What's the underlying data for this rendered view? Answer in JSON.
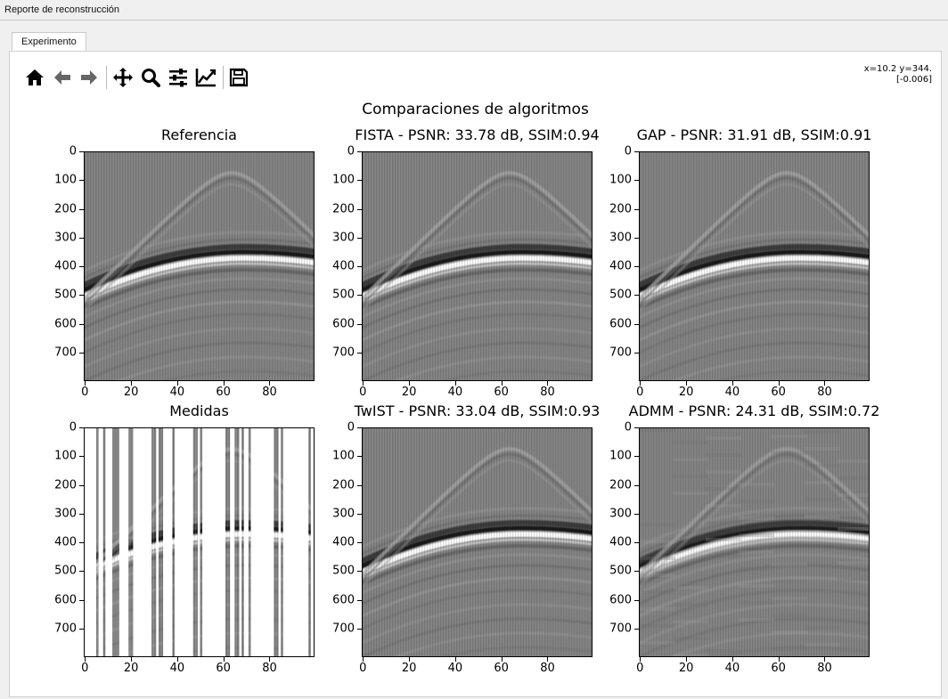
{
  "window": {
    "title": "Reporte de reconstrucción"
  },
  "tabs": [
    {
      "label": "Experimento",
      "active": true
    }
  ],
  "toolbar": {
    "buttons": [
      {
        "name": "home-button",
        "icon": "home-icon"
      },
      {
        "name": "back-button",
        "icon": "arrow-left-icon"
      },
      {
        "name": "forward-button",
        "icon": "arrow-right-icon"
      },
      {
        "name": "pan-button",
        "icon": "move-icon"
      },
      {
        "name": "zoom-button",
        "icon": "zoom-icon"
      },
      {
        "name": "subplots-button",
        "icon": "sliders-icon"
      },
      {
        "name": "customize-button",
        "icon": "chart-line-icon"
      },
      {
        "name": "save-button",
        "icon": "save-icon"
      }
    ]
  },
  "coords": {
    "line1": "x=10.2 y=344.",
    "line2": "[-0.006]"
  },
  "figure": {
    "suptitle": "Comparaciones de algoritmos"
  },
  "chart_data": [
    {
      "type": "heatmap",
      "title": "Referencia",
      "xticks": [
        "0",
        "20",
        "40",
        "60",
        "80"
      ],
      "yticks": [
        "0",
        "100",
        "200",
        "300",
        "400",
        "500",
        "600",
        "700"
      ],
      "xlim": [
        0,
        100
      ],
      "ylim": [
        800,
        0
      ],
      "colormap": "gray"
    },
    {
      "type": "heatmap",
      "title": "FISTA - PSNR: 33.78 dB, SSIM:0.94",
      "xticks": [
        "0",
        "20",
        "40",
        "60",
        "80"
      ],
      "yticks": [
        "0",
        "100",
        "200",
        "300",
        "400",
        "500",
        "600",
        "700"
      ],
      "xlim": [
        0,
        100
      ],
      "ylim": [
        800,
        0
      ],
      "colormap": "gray",
      "metrics": {
        "psnr_db": 33.78,
        "ssim": 0.94
      }
    },
    {
      "type": "heatmap",
      "title": "GAP - PSNR: 31.91 dB, SSIM:0.91",
      "xticks": [
        "0",
        "20",
        "40",
        "60",
        "80"
      ],
      "yticks": [
        "0",
        "100",
        "200",
        "300",
        "400",
        "500",
        "600",
        "700"
      ],
      "xlim": [
        0,
        100
      ],
      "ylim": [
        800,
        0
      ],
      "colormap": "gray",
      "metrics": {
        "psnr_db": 31.91,
        "ssim": 0.91
      }
    },
    {
      "type": "heatmap",
      "title": "Medidas",
      "xticks": [
        "0",
        "20",
        "40",
        "60",
        "80"
      ],
      "yticks": [
        "0",
        "100",
        "200",
        "300",
        "400",
        "500",
        "600",
        "700"
      ],
      "xlim": [
        0,
        100
      ],
      "ylim": [
        800,
        0
      ],
      "colormap": "gray",
      "sampled_columns": [
        5,
        8,
        12,
        13,
        14,
        19,
        20,
        29,
        30,
        32,
        33,
        38,
        47,
        48,
        50,
        61,
        62,
        65,
        66,
        68,
        71,
        82,
        83,
        85,
        97
      ]
    },
    {
      "type": "heatmap",
      "title": "TwIST - PSNR: 33.04 dB, SSIM:0.93",
      "xticks": [
        "0",
        "20",
        "40",
        "60",
        "80"
      ],
      "yticks": [
        "0",
        "100",
        "200",
        "300",
        "400",
        "500",
        "600",
        "700"
      ],
      "xlim": [
        0,
        100
      ],
      "ylim": [
        800,
        0
      ],
      "colormap": "gray",
      "metrics": {
        "psnr_db": 33.04,
        "ssim": 0.93
      }
    },
    {
      "type": "heatmap",
      "title": "ADMM - PSNR: 24.31 dB, SSIM:0.72",
      "xticks": [
        "0",
        "20",
        "40",
        "60",
        "80"
      ],
      "yticks": [
        "0",
        "100",
        "200",
        "300",
        "400",
        "500",
        "600",
        "700"
      ],
      "xlim": [
        0,
        100
      ],
      "ylim": [
        800,
        0
      ],
      "colormap": "gray",
      "metrics": {
        "psnr_db": 24.31,
        "ssim": 0.72
      }
    }
  ]
}
